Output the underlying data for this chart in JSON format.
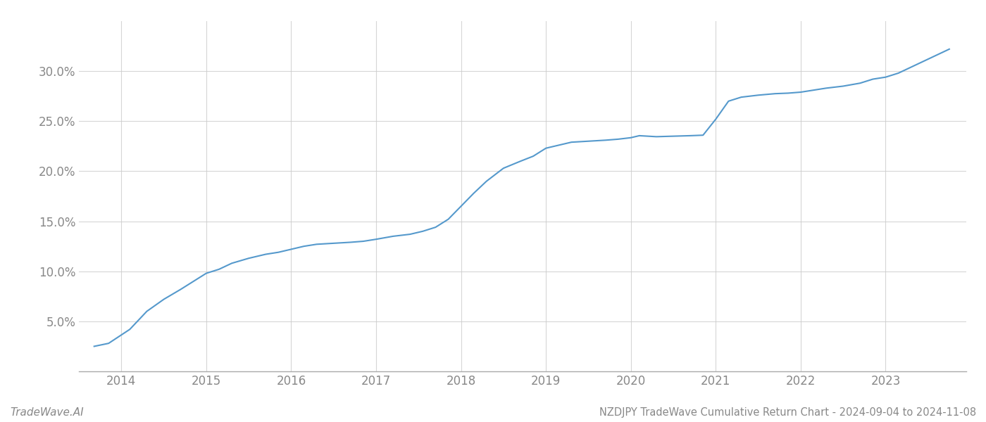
{
  "title": "NZDJPY TradeWave Cumulative Return Chart - 2024-09-04 to 2024-11-08",
  "watermark": "TradeWave.AI",
  "line_color": "#5599cc",
  "background_color": "#ffffff",
  "grid_color": "#cccccc",
  "axis_color": "#888888",
  "x_values": [
    2013.68,
    2013.85,
    2014.1,
    2014.3,
    2014.5,
    2014.7,
    2014.85,
    2015.0,
    2015.15,
    2015.3,
    2015.5,
    2015.7,
    2015.85,
    2016.0,
    2016.15,
    2016.3,
    2016.5,
    2016.7,
    2016.85,
    2017.0,
    2017.2,
    2017.4,
    2017.55,
    2017.7,
    2017.85,
    2018.0,
    2018.15,
    2018.3,
    2018.5,
    2018.7,
    2018.85,
    2019.0,
    2019.15,
    2019.3,
    2019.5,
    2019.7,
    2019.85,
    2020.0,
    2020.1,
    2020.3,
    2020.5,
    2020.7,
    2020.85,
    2021.0,
    2021.15,
    2021.3,
    2021.5,
    2021.7,
    2021.85,
    2022.0,
    2022.15,
    2022.3,
    2022.5,
    2022.7,
    2022.85,
    2023.0,
    2023.15,
    2023.5,
    2023.75
  ],
  "y_values": [
    2.5,
    2.8,
    4.2,
    6.0,
    7.2,
    8.2,
    9.0,
    9.8,
    10.2,
    10.8,
    11.3,
    11.7,
    11.9,
    12.2,
    12.5,
    12.7,
    12.8,
    12.9,
    13.0,
    13.2,
    13.5,
    13.7,
    14.0,
    14.4,
    15.2,
    16.5,
    17.8,
    19.0,
    20.3,
    21.0,
    21.5,
    22.3,
    22.6,
    22.9,
    23.0,
    23.1,
    23.2,
    23.35,
    23.55,
    23.45,
    23.5,
    23.55,
    23.6,
    25.2,
    27.0,
    27.4,
    27.6,
    27.75,
    27.8,
    27.9,
    28.1,
    28.3,
    28.5,
    28.8,
    29.2,
    29.4,
    29.8,
    31.2,
    32.2
  ],
  "xlim": [
    2013.5,
    2023.95
  ],
  "ylim": [
    0,
    35
  ],
  "yticks": [
    5.0,
    10.0,
    15.0,
    20.0,
    25.0,
    30.0
  ],
  "xticks": [
    2014,
    2015,
    2016,
    2017,
    2018,
    2019,
    2020,
    2021,
    2022,
    2023
  ],
  "line_width": 1.5,
  "title_fontsize": 10.5,
  "tick_fontsize": 12,
  "watermark_fontsize": 11
}
